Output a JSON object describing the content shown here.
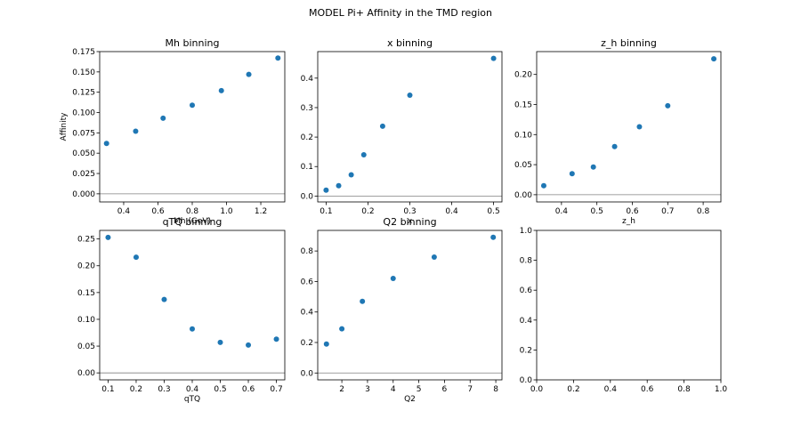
{
  "figure": {
    "suptitle": "MODEL Pi+ Affinity in the TMD region"
  },
  "chart_data": [
    {
      "type": "scatter",
      "title": "Mh binning",
      "xlabel": "Mh (GeV)",
      "ylabel": "Affinity",
      "x": [
        0.3,
        0.47,
        0.63,
        0.8,
        0.97,
        1.13,
        1.3
      ],
      "y": [
        0.062,
        0.077,
        0.093,
        0.109,
        0.127,
        0.147,
        0.167
      ],
      "xlim": [
        0.26,
        1.34
      ],
      "ylim": [
        -0.01,
        0.175
      ],
      "xticks": [
        0.4,
        0.6,
        0.8,
        1.0,
        1.2
      ],
      "xticklabels": [
        "0.4",
        "0.6",
        "0.8",
        "1.0",
        "1.2"
      ],
      "yticks": [
        0.0,
        0.025,
        0.05,
        0.075,
        0.1,
        0.125,
        0.15,
        0.175
      ],
      "yticklabels": [
        "0.000",
        "0.025",
        "0.050",
        "0.075",
        "0.100",
        "0.125",
        "0.150",
        "0.175"
      ],
      "zero_line": true,
      "color": "#1f77b4"
    },
    {
      "type": "scatter",
      "title": "x binning",
      "xlabel": "x",
      "ylabel": "",
      "x": [
        0.1,
        0.13,
        0.16,
        0.19,
        0.235,
        0.3,
        0.5
      ],
      "y": [
        0.02,
        0.035,
        0.072,
        0.14,
        0.237,
        0.342,
        0.467
      ],
      "xlim": [
        0.08,
        0.52
      ],
      "ylim": [
        -0.02,
        0.49
      ],
      "xticks": [
        0.1,
        0.2,
        0.3,
        0.4,
        0.5
      ],
      "xticklabels": [
        "0.1",
        "0.2",
        "0.3",
        "0.4",
        "0.5"
      ],
      "yticks": [
        0.0,
        0.1,
        0.2,
        0.3,
        0.4
      ],
      "yticklabels": [
        "0.0",
        "0.1",
        "0.2",
        "0.3",
        "0.4"
      ],
      "zero_line": true,
      "color": "#1f77b4"
    },
    {
      "type": "scatter",
      "title": "z_h binning",
      "xlabel": "z_h",
      "ylabel": "",
      "x": [
        0.35,
        0.43,
        0.49,
        0.55,
        0.62,
        0.7,
        0.83
      ],
      "y": [
        0.015,
        0.035,
        0.046,
        0.08,
        0.113,
        0.148,
        0.226
      ],
      "xlim": [
        0.33,
        0.85
      ],
      "ylim": [
        -0.012,
        0.238
      ],
      "xticks": [
        0.4,
        0.5,
        0.6,
        0.7,
        0.8
      ],
      "xticklabels": [
        "0.4",
        "0.5",
        "0.6",
        "0.7",
        "0.8"
      ],
      "yticks": [
        0.0,
        0.05,
        0.1,
        0.15,
        0.2
      ],
      "yticklabels": [
        "0.00",
        "0.05",
        "0.10",
        "0.15",
        "0.20"
      ],
      "zero_line": true,
      "color": "#1f77b4"
    },
    {
      "type": "scatter",
      "title": "qTQ binning",
      "xlabel": "qTQ",
      "ylabel": "",
      "x": [
        0.1,
        0.2,
        0.3,
        0.4,
        0.5,
        0.6,
        0.7
      ],
      "y": [
        0.253,
        0.216,
        0.137,
        0.082,
        0.057,
        0.052,
        0.063
      ],
      "xlim": [
        0.07,
        0.73
      ],
      "ylim": [
        -0.013,
        0.266
      ],
      "xticks": [
        0.1,
        0.2,
        0.3,
        0.4,
        0.5,
        0.6,
        0.7
      ],
      "xticklabels": [
        "0.1",
        "0.2",
        "0.3",
        "0.4",
        "0.5",
        "0.6",
        "0.7"
      ],
      "yticks": [
        0.0,
        0.05,
        0.1,
        0.15,
        0.2,
        0.25
      ],
      "yticklabels": [
        "0.00",
        "0.05",
        "0.10",
        "0.15",
        "0.20",
        "0.25"
      ],
      "zero_line": true,
      "color": "#1f77b4"
    },
    {
      "type": "scatter",
      "title": "Q2 binning",
      "xlabel": "Q2",
      "ylabel": "",
      "x": [
        1.4,
        2.0,
        2.8,
        4.0,
        5.6,
        7.9
      ],
      "y": [
        0.19,
        0.29,
        0.47,
        0.62,
        0.76,
        0.89
      ],
      "xlim": [
        1.06,
        8.24
      ],
      "ylim": [
        -0.045,
        0.935
      ],
      "xticks": [
        2,
        3,
        4,
        5,
        6,
        7,
        8
      ],
      "xticklabels": [
        "2",
        "3",
        "4",
        "5",
        "6",
        "7",
        "8"
      ],
      "yticks": [
        0.0,
        0.2,
        0.4,
        0.6,
        0.8
      ],
      "yticklabels": [
        "0.0",
        "0.2",
        "0.4",
        "0.6",
        "0.8"
      ],
      "zero_line": true,
      "color": "#1f77b4"
    },
    {
      "type": "scatter",
      "title": "",
      "xlabel": "",
      "ylabel": "",
      "x": [],
      "y": [],
      "xlim": [
        0,
        1
      ],
      "ylim": [
        0,
        1
      ],
      "xticks": [
        0.0,
        0.2,
        0.4,
        0.6,
        0.8,
        1.0
      ],
      "xticklabels": [
        "0.0",
        "0.2",
        "0.4",
        "0.6",
        "0.8",
        "1.0"
      ],
      "yticks": [
        0.0,
        0.2,
        0.4,
        0.6,
        0.8,
        1.0
      ],
      "yticklabels": [
        "0.0",
        "0.2",
        "0.4",
        "0.6",
        "0.8",
        "1.0"
      ],
      "zero_line": false,
      "color": "#1f77b4"
    }
  ]
}
